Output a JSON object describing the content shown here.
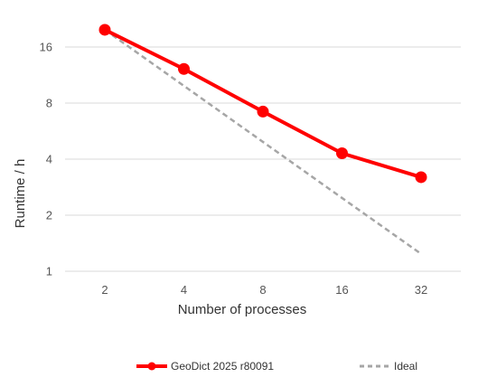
{
  "chart_data": {
    "type": "line",
    "xlabel": "Number of processes",
    "ylabel": "Runtime / h",
    "x_scale": "log2",
    "y_scale": "log2",
    "x": [
      2,
      4,
      8,
      16,
      32
    ],
    "x_tick_labels": [
      "2",
      "4",
      "8",
      "16",
      "32"
    ],
    "y_tick_labels": [
      "1",
      "2",
      "4",
      "8",
      "16"
    ],
    "y_ticks": [
      1,
      2,
      4,
      8,
      16
    ],
    "ylim": [
      1,
      20
    ],
    "grid": true,
    "legend_position": "bottom",
    "series": [
      {
        "name": "GeoDict 2025 r80091",
        "values": [
          19.8,
          12.2,
          7.2,
          4.3,
          3.2
        ],
        "color": "#ff0000",
        "style": "solid",
        "markers": true
      },
      {
        "name": "Ideal",
        "values": [
          19.8,
          9.9,
          4.95,
          2.475,
          1.24
        ],
        "color": "#a6a6a6",
        "style": "dashed",
        "markers": false
      }
    ]
  }
}
